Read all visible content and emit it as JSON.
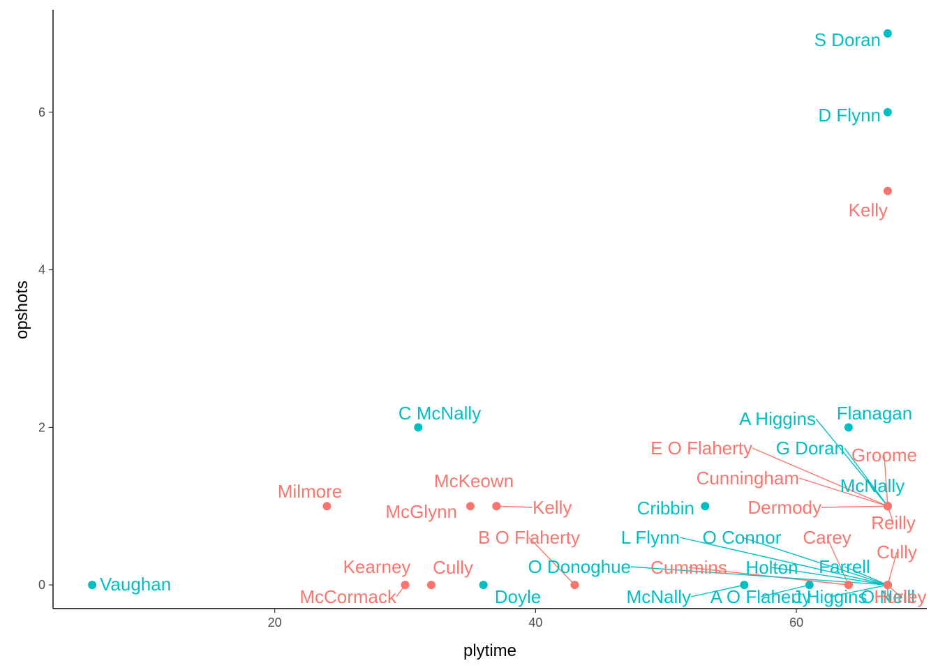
{
  "chart_data": {
    "type": "scatter",
    "xlabel": "plytime",
    "ylabel": "opshots",
    "xlim": [
      3,
      70
    ],
    "ylim": [
      -0.3,
      7.3
    ],
    "xticks": [
      20,
      40,
      60
    ],
    "yticks": [
      0,
      2,
      4,
      6
    ],
    "grid": false,
    "legend": "none",
    "colors": {
      "a": "#F8766D",
      "b": "#00BFC4"
    },
    "points": [
      {
        "label": "S Doran",
        "x": 67,
        "y": 7,
        "group": "b"
      },
      {
        "label": "D Flynn",
        "x": 67,
        "y": 6,
        "group": "b"
      },
      {
        "label": "Kelly",
        "x": 67,
        "y": 5,
        "group": "a"
      },
      {
        "label": "C McNally",
        "x": 31,
        "y": 2,
        "group": "b"
      },
      {
        "label": "Flanagan",
        "x": 64,
        "y": 2,
        "group": "b"
      },
      {
        "label": "Milmore",
        "x": 24,
        "y": 1,
        "group": "a"
      },
      {
        "label": "McGlynn",
        "x": 35,
        "y": 1,
        "group": "a"
      },
      {
        "label": "McKeown",
        "x": 37,
        "y": 1,
        "group": "a"
      },
      {
        "label": "Kelly",
        "x": 37,
        "y": 1,
        "group": "a"
      },
      {
        "label": "Cribbin",
        "x": 53,
        "y": 1,
        "group": "b"
      },
      {
        "label": "A Higgins",
        "x": 67,
        "y": 1,
        "group": "b"
      },
      {
        "label": "G Doran",
        "x": 67,
        "y": 1,
        "group": "b"
      },
      {
        "label": "McNally",
        "x": 67,
        "y": 1,
        "group": "b"
      },
      {
        "label": "E O Flaherty",
        "x": 67,
        "y": 1,
        "group": "a"
      },
      {
        "label": "Groome",
        "x": 67,
        "y": 1,
        "group": "a"
      },
      {
        "label": "Cunningham",
        "x": 67,
        "y": 1,
        "group": "a"
      },
      {
        "label": "Dermody",
        "x": 67,
        "y": 1,
        "group": "a"
      },
      {
        "label": "Reilly",
        "x": 67,
        "y": 1,
        "group": "a"
      },
      {
        "label": "Vaughan",
        "x": 6,
        "y": 0,
        "group": "b"
      },
      {
        "label": "Kearney",
        "x": 30,
        "y": 0,
        "group": "a"
      },
      {
        "label": "McCormack",
        "x": 30,
        "y": 0,
        "group": "a"
      },
      {
        "label": "Cully",
        "x": 32,
        "y": 0,
        "group": "a"
      },
      {
        "label": "Doyle",
        "x": 36,
        "y": 0,
        "group": "b"
      },
      {
        "label": "B O Flaherty",
        "x": 43,
        "y": 0,
        "group": "a"
      },
      {
        "label": "McNally",
        "x": 56,
        "y": 0,
        "group": "b"
      },
      {
        "label": "A O Flaherty",
        "x": 61,
        "y": 0,
        "group": "b"
      },
      {
        "label": "Cummins",
        "x": 64,
        "y": 0,
        "group": "a"
      },
      {
        "label": "Carey",
        "x": 64,
        "y": 0,
        "group": "a"
      },
      {
        "label": "L Flynn",
        "x": 67,
        "y": 0,
        "group": "b"
      },
      {
        "label": "O Connor",
        "x": 67,
        "y": 0,
        "group": "b"
      },
      {
        "label": "O Donoghue",
        "x": 67,
        "y": 0,
        "group": "b"
      },
      {
        "label": "Holton",
        "x": 67,
        "y": 0,
        "group": "b"
      },
      {
        "label": "Farrell",
        "x": 67,
        "y": 0,
        "group": "b"
      },
      {
        "label": "J Higgins",
        "x": 67,
        "y": 0,
        "group": "b"
      },
      {
        "label": "O Neill",
        "x": 67,
        "y": 0,
        "group": "b"
      },
      {
        "label": "Cully",
        "x": 67,
        "y": 0,
        "group": "a"
      },
      {
        "label": "Hurley",
        "x": 67,
        "y": 0,
        "group": "a"
      },
      {
        "label": "Carey",
        "x": 67,
        "y": 0,
        "group": "a"
      }
    ]
  }
}
